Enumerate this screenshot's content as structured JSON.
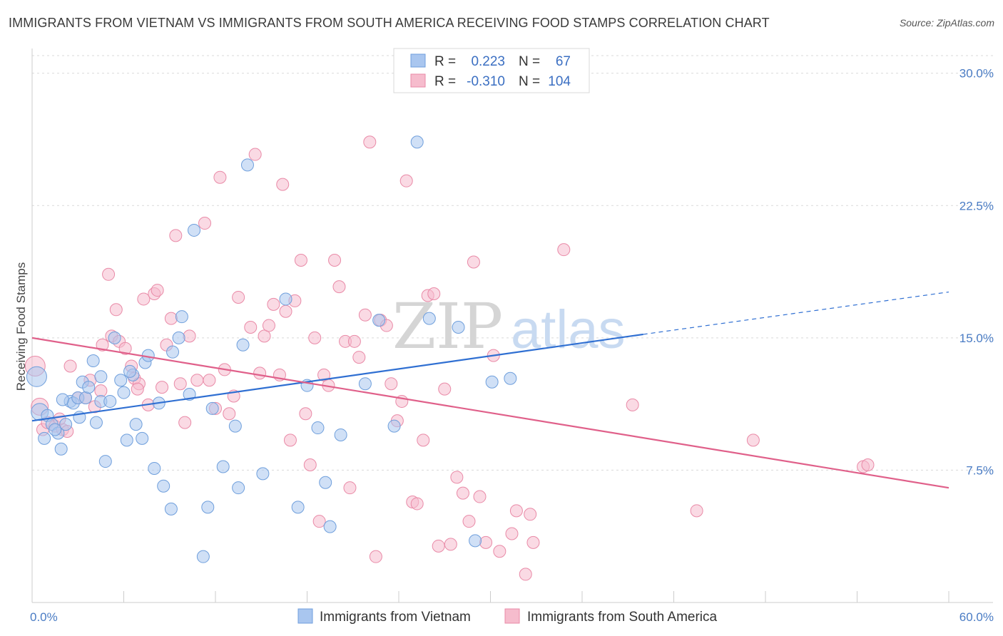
{
  "title": "IMMIGRANTS FROM VIETNAM VS IMMIGRANTS FROM SOUTH AMERICA RECEIVING FOOD STAMPS CORRELATION CHART",
  "source": "Source: ZipAtlas.com",
  "watermark": {
    "zip": "ZIP",
    "atlas": "atlas"
  },
  "colors": {
    "vietnam_fill": "#a9c6ef",
    "vietnam_stroke": "#6f9fdc",
    "vietnam_line": "#2f6fd2",
    "southamerica_fill": "#f6bccd",
    "southamerica_stroke": "#e98aa7",
    "southamerica_line": "#e0608a",
    "grid": "#d9d9d9",
    "axis_text": "#4a7cc4"
  },
  "legend_top": [
    {
      "r_label": "R =",
      "r_value": "0.223",
      "n_label": "N =",
      "n_value": "67"
    },
    {
      "r_label": "R =",
      "r_value": "-0.310",
      "n_label": "N =",
      "n_value": "104"
    }
  ],
  "chart_data": {
    "type": "scatter",
    "title": "IMMIGRANTS FROM VIETNAM VS IMMIGRANTS FROM SOUTH AMERICA RECEIVING FOOD STAMPS CORRELATION CHART",
    "xlabel": "",
    "ylabel": "Receiving Food Stamps",
    "xlim": [
      0,
      60
    ],
    "ylim": [
      0,
      31
    ],
    "x_tick_labels": [
      "0.0%",
      "60.0%"
    ],
    "y_ticks": [
      7.5,
      15.0,
      22.5,
      30.0
    ],
    "y_tick_labels": [
      "7.5%",
      "15.0%",
      "22.5%",
      "30.0%"
    ],
    "grid": true,
    "legend_position": "top-center and bottom",
    "series": [
      {
        "name": "Immigrants from Vietnam",
        "trend": {
          "x0": 0,
          "y0": 10.3,
          "x1": 40,
          "y1": 15.2,
          "dash_x1": 60,
          "dash_y1": 17.6
        },
        "points": [
          [
            0.3,
            12.8
          ],
          [
            0.5,
            10.8
          ],
          [
            0.8,
            9.3
          ],
          [
            1.0,
            10.6
          ],
          [
            1.3,
            10.1
          ],
          [
            1.7,
            9.6
          ],
          [
            1.9,
            8.7
          ],
          [
            2.2,
            10.1
          ],
          [
            2.5,
            11.4
          ],
          [
            2.7,
            11.3
          ],
          [
            3.0,
            11.6
          ],
          [
            3.3,
            12.5
          ],
          [
            3.5,
            11.6
          ],
          [
            3.7,
            12.2
          ],
          [
            4.0,
            13.7
          ],
          [
            4.2,
            10.2
          ],
          [
            4.5,
            11.4
          ],
          [
            4.8,
            8.0
          ],
          [
            5.1,
            11.4
          ],
          [
            5.4,
            15.0
          ],
          [
            5.8,
            12.6
          ],
          [
            6.0,
            11.9
          ],
          [
            6.2,
            9.2
          ],
          [
            6.6,
            12.9
          ],
          [
            6.8,
            10.1
          ],
          [
            7.2,
            9.3
          ],
          [
            7.4,
            13.6
          ],
          [
            7.6,
            14.0
          ],
          [
            8.0,
            7.6
          ],
          [
            8.3,
            11.3
          ],
          [
            8.6,
            6.6
          ],
          [
            9.1,
            5.3
          ],
          [
            9.6,
            15.0
          ],
          [
            9.8,
            16.2
          ],
          [
            10.3,
            11.8
          ],
          [
            10.6,
            21.1
          ],
          [
            11.2,
            2.6
          ],
          [
            11.5,
            5.4
          ],
          [
            11.8,
            11.0
          ],
          [
            12.5,
            7.7
          ],
          [
            13.3,
            10.0
          ],
          [
            13.5,
            6.5
          ],
          [
            13.8,
            14.6
          ],
          [
            14.1,
            24.8
          ],
          [
            15.1,
            7.3
          ],
          [
            16.6,
            17.2
          ],
          [
            17.4,
            5.4
          ],
          [
            18.0,
            12.3
          ],
          [
            18.7,
            9.9
          ],
          [
            19.2,
            6.8
          ],
          [
            19.5,
            4.3
          ],
          [
            20.2,
            9.5
          ],
          [
            21.8,
            12.4
          ],
          [
            22.7,
            16.0
          ],
          [
            23.7,
            10.0
          ],
          [
            25.2,
            26.1
          ],
          [
            26.0,
            16.1
          ],
          [
            27.9,
            15.6
          ],
          [
            29.0,
            3.5
          ],
          [
            30.1,
            12.5
          ],
          [
            31.3,
            12.7
          ],
          [
            4.5,
            12.8
          ],
          [
            2.0,
            11.5
          ],
          [
            3.1,
            10.5
          ],
          [
            1.5,
            9.8
          ],
          [
            6.4,
            13.1
          ],
          [
            9.2,
            14.2
          ]
        ]
      },
      {
        "name": "Immigrants from South America",
        "trend": {
          "x0": 0,
          "y0": 15.0,
          "x1": 60,
          "y1": 6.5
        },
        "points": [
          [
            0.2,
            13.4
          ],
          [
            0.5,
            11.1
          ],
          [
            0.7,
            9.8
          ],
          [
            1.0,
            10.2
          ],
          [
            1.5,
            10.0
          ],
          [
            2.0,
            9.8
          ],
          [
            2.5,
            13.4
          ],
          [
            3.0,
            11.6
          ],
          [
            3.5,
            11.6
          ],
          [
            3.8,
            12.6
          ],
          [
            4.1,
            11.1
          ],
          [
            4.5,
            12.0
          ],
          [
            5.0,
            18.6
          ],
          [
            5.2,
            15.1
          ],
          [
            5.5,
            16.6
          ],
          [
            5.7,
            14.8
          ],
          [
            6.1,
            14.4
          ],
          [
            6.5,
            13.4
          ],
          [
            6.7,
            12.7
          ],
          [
            7.0,
            12.4
          ],
          [
            7.3,
            17.2
          ],
          [
            7.6,
            11.2
          ],
          [
            8.0,
            17.5
          ],
          [
            8.2,
            17.7
          ],
          [
            8.5,
            12.2
          ],
          [
            8.8,
            14.6
          ],
          [
            9.1,
            16.1
          ],
          [
            9.4,
            20.8
          ],
          [
            9.7,
            12.4
          ],
          [
            10.0,
            10.2
          ],
          [
            10.3,
            15.1
          ],
          [
            10.8,
            12.6
          ],
          [
            11.3,
            21.5
          ],
          [
            11.6,
            12.6
          ],
          [
            12.0,
            11.0
          ],
          [
            12.3,
            24.1
          ],
          [
            12.6,
            13.2
          ],
          [
            12.9,
            10.7
          ],
          [
            13.2,
            11.7
          ],
          [
            13.5,
            17.3
          ],
          [
            14.3,
            15.6
          ],
          [
            14.6,
            25.4
          ],
          [
            14.9,
            13.0
          ],
          [
            15.2,
            15.1
          ],
          [
            15.5,
            15.7
          ],
          [
            15.8,
            16.9
          ],
          [
            16.2,
            12.9
          ],
          [
            16.4,
            23.7
          ],
          [
            16.6,
            16.5
          ],
          [
            16.9,
            9.2
          ],
          [
            17.2,
            17.1
          ],
          [
            17.6,
            19.4
          ],
          [
            17.9,
            10.7
          ],
          [
            18.2,
            7.8
          ],
          [
            18.5,
            15.0
          ],
          [
            18.8,
            4.6
          ],
          [
            19.1,
            12.9
          ],
          [
            19.4,
            12.3
          ],
          [
            19.8,
            19.4
          ],
          [
            20.1,
            17.9
          ],
          [
            20.5,
            14.8
          ],
          [
            20.8,
            6.5
          ],
          [
            21.1,
            14.8
          ],
          [
            21.4,
            13.9
          ],
          [
            21.8,
            16.3
          ],
          [
            22.1,
            26.1
          ],
          [
            22.5,
            2.6
          ],
          [
            22.8,
            16.0
          ],
          [
            23.2,
            15.7
          ],
          [
            23.5,
            12.4
          ],
          [
            23.9,
            10.3
          ],
          [
            24.2,
            11.4
          ],
          [
            24.5,
            23.9
          ],
          [
            24.9,
            5.7
          ],
          [
            25.2,
            5.6
          ],
          [
            25.6,
            9.2
          ],
          [
            25.9,
            17.4
          ],
          [
            26.3,
            17.5
          ],
          [
            26.6,
            3.2
          ],
          [
            27.0,
            12.1
          ],
          [
            27.4,
            3.3
          ],
          [
            27.8,
            7.1
          ],
          [
            28.2,
            6.2
          ],
          [
            28.6,
            4.6
          ],
          [
            28.9,
            19.3
          ],
          [
            29.3,
            6.0
          ],
          [
            29.7,
            3.4
          ],
          [
            30.2,
            14.0
          ],
          [
            30.6,
            2.9
          ],
          [
            31.4,
            3.9
          ],
          [
            31.7,
            5.2
          ],
          [
            32.3,
            1.6
          ],
          [
            32.8,
            3.4
          ],
          [
            32.6,
            5.0
          ],
          [
            34.8,
            20.0
          ],
          [
            39.3,
            11.2
          ],
          [
            43.5,
            5.2
          ],
          [
            47.2,
            9.2
          ],
          [
            54.4,
            7.7
          ],
          [
            54.7,
            7.8
          ],
          [
            1.8,
            10.4
          ],
          [
            2.3,
            9.7
          ],
          [
            4.6,
            14.6
          ],
          [
            6.9,
            12.1
          ]
        ]
      }
    ]
  },
  "legend_bottom": [
    {
      "label": "Immigrants from Vietnam"
    },
    {
      "label": "Immigrants from South America"
    }
  ]
}
